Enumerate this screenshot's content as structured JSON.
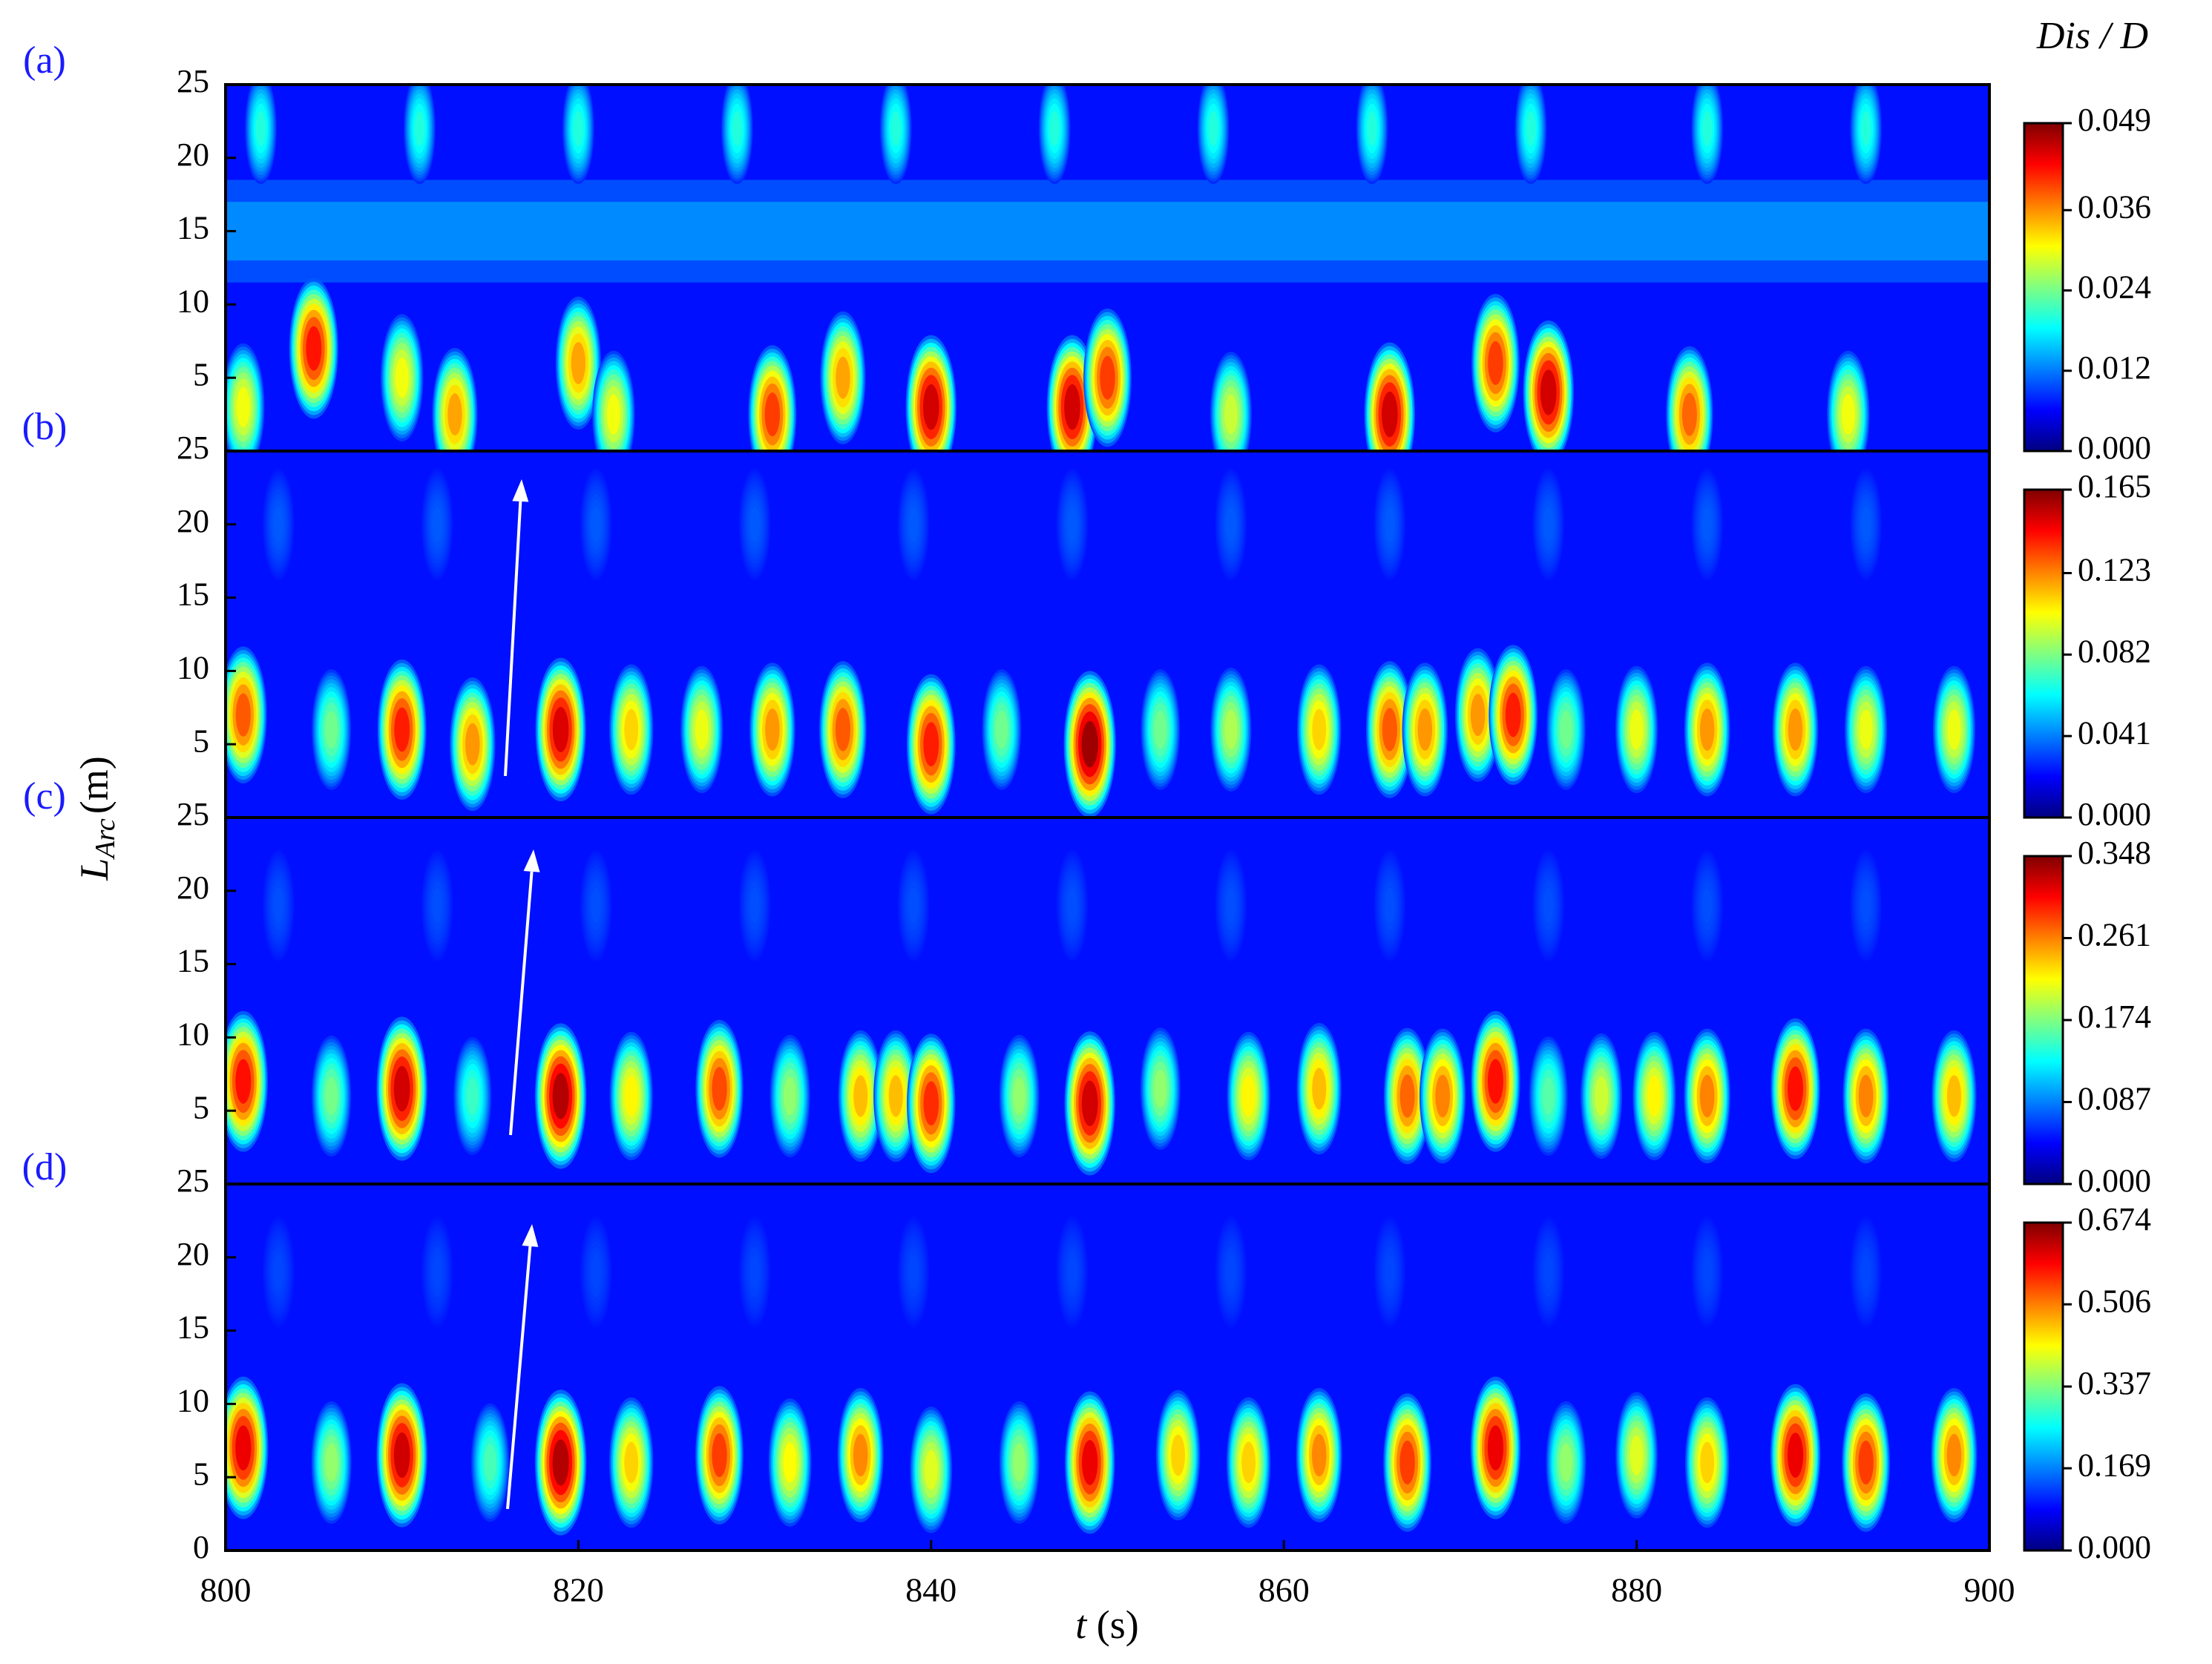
{
  "axes": {
    "xlabel": {
      "symbol": "t",
      "unit": "(s)"
    },
    "ylabel": {
      "symbol": "L",
      "subscript": "Arc",
      "unit": "(m)"
    },
    "colorbar_title": "Dis / D"
  },
  "chart_data": [
    {
      "type": "heatmap",
      "label": "(a)",
      "xlim": [
        800,
        900
      ],
      "ylim": [
        0,
        25
      ],
      "yticks": [
        5,
        10,
        15,
        20,
        25
      ],
      "colorbar": {
        "lim": [
          0,
          0.049
        ],
        "ticks": [
          {
            "value": 0,
            "label": "0.000"
          },
          0.012,
          0.024,
          0.036,
          0.049
        ]
      },
      "peaks": {
        "x": [
          801,
          805,
          810,
          813,
          820,
          822,
          831,
          835,
          840,
          848,
          850,
          857,
          866,
          872,
          875,
          883,
          892,
          802,
          811,
          820,
          829,
          838,
          847,
          856,
          865,
          874,
          884,
          893
        ],
        "y": [
          3,
          7,
          5,
          2.5,
          6,
          2.5,
          2.5,
          5,
          3,
          3,
          5,
          2.5,
          2.5,
          6,
          4,
          2.5,
          2.5,
          22,
          22,
          22,
          22,
          22,
          22,
          22,
          22,
          22,
          22,
          22
        ],
        "values": [
          0.03,
          0.042,
          0.03,
          0.035,
          0.035,
          0.03,
          0.04,
          0.035,
          0.045,
          0.045,
          0.04,
          0.028,
          0.045,
          0.04,
          0.045,
          0.038,
          0.03,
          0.02,
          0.02,
          0.02,
          0.02,
          0.02,
          0.02,
          0.02,
          0.02,
          0.02,
          0.02,
          0.02
        ]
      }
    },
    {
      "type": "heatmap",
      "label": "(b)",
      "xlim": [
        800,
        900
      ],
      "ylim": [
        0,
        25
      ],
      "yticks": [
        5,
        10,
        15,
        20,
        25
      ],
      "colorbar": {
        "lim": [
          0,
          0.165
        ],
        "ticks": [
          {
            "value": 0,
            "label": "0.000"
          },
          0.041,
          0.082,
          0.123,
          0.165
        ]
      },
      "peaks": {
        "x": [
          801,
          806,
          810,
          814,
          819,
          823,
          827,
          831,
          835,
          840,
          844,
          849,
          853,
          857,
          862,
          866,
          868,
          871,
          873,
          876,
          880,
          884,
          889,
          893,
          898,
          803,
          812,
          821,
          830,
          839,
          848,
          857,
          866,
          875,
          884,
          893
        ],
        "y": [
          7,
          6,
          6,
          5,
          6,
          6,
          6,
          6,
          6,
          5,
          6,
          5,
          6,
          6,
          6,
          6,
          6,
          7,
          7,
          6,
          6,
          6,
          6,
          6,
          6,
          20,
          20,
          20,
          20,
          20,
          20,
          20,
          20,
          20,
          20,
          20
        ],
        "values": [
          0.13,
          0.08,
          0.14,
          0.12,
          0.15,
          0.11,
          0.1,
          0.12,
          0.13,
          0.14,
          0.08,
          0.16,
          0.08,
          0.09,
          0.11,
          0.13,
          0.12,
          0.12,
          0.14,
          0.08,
          0.1,
          0.12,
          0.12,
          0.1,
          0.1,
          0.035,
          0.035,
          0.035,
          0.035,
          0.035,
          0.035,
          0.035,
          0.035,
          0.035,
          0.035,
          0.035
        ]
      }
    },
    {
      "type": "heatmap",
      "label": "(c)",
      "xlim": [
        800,
        900
      ],
      "ylim": [
        0,
        25
      ],
      "yticks": [
        5,
        10,
        15,
        20,
        25
      ],
      "colorbar": {
        "lim": [
          0,
          0.348
        ],
        "ticks": [
          {
            "value": 0,
            "label": "0.000"
          },
          0.087,
          0.174,
          0.261,
          0.348
        ]
      },
      "peaks": {
        "x": [
          801,
          806,
          810,
          814,
          819,
          823,
          828,
          832,
          836,
          838,
          840,
          845,
          849,
          853,
          858,
          862,
          867,
          869,
          872,
          875,
          878,
          881,
          884,
          889,
          893,
          898,
          803,
          812,
          821,
          830,
          839,
          848,
          857,
          866,
          875,
          884,
          893
        ],
        "y": [
          7,
          6,
          6.5,
          6,
          6,
          6,
          6.5,
          6,
          6,
          6,
          5.5,
          6,
          5.5,
          6.5,
          6,
          6.5,
          6,
          6,
          7,
          6,
          6,
          6,
          6,
          6.5,
          6,
          6,
          19,
          19,
          19,
          19,
          19,
          19,
          19,
          19,
          19,
          19,
          19
        ],
        "values": [
          0.3,
          0.17,
          0.32,
          0.15,
          0.33,
          0.22,
          0.28,
          0.18,
          0.24,
          0.24,
          0.29,
          0.18,
          0.32,
          0.18,
          0.22,
          0.24,
          0.27,
          0.26,
          0.3,
          0.16,
          0.2,
          0.22,
          0.26,
          0.3,
          0.26,
          0.24,
          0.07,
          0.07,
          0.07,
          0.07,
          0.07,
          0.07,
          0.07,
          0.07,
          0.07,
          0.07,
          0.07
        ]
      }
    },
    {
      "type": "heatmap",
      "label": "(d)",
      "xlim": [
        800,
        900
      ],
      "ylim": [
        0,
        25
      ],
      "xticks": [
        800,
        820,
        840,
        860,
        880,
        900
      ],
      "yticks": [
        0,
        5,
        10,
        15,
        20,
        25
      ],
      "colorbar": {
        "lim": [
          0,
          0.674
        ],
        "ticks": [
          {
            "value": 0,
            "label": "0.000"
          },
          0.169,
          0.337,
          0.506,
          0.674
        ]
      },
      "peaks": {
        "x": [
          801,
          806,
          810,
          815,
          819,
          823,
          828,
          832,
          836,
          840,
          845,
          849,
          854,
          858,
          862,
          867,
          872,
          876,
          880,
          884,
          889,
          893,
          898,
          803,
          812,
          821,
          830,
          839,
          848,
          857,
          866,
          875,
          884,
          893
        ],
        "y": [
          7,
          6,
          6.5,
          6,
          6,
          6,
          6.5,
          6,
          6.5,
          5.5,
          6,
          6,
          6.5,
          6,
          6.5,
          6,
          7,
          6,
          6.5,
          6,
          6.5,
          6,
          6.5,
          19,
          19,
          19,
          19,
          19,
          19,
          19,
          19,
          19,
          19,
          19
        ],
        "values": [
          0.6,
          0.35,
          0.62,
          0.3,
          0.64,
          0.45,
          0.55,
          0.42,
          0.5,
          0.4,
          0.35,
          0.6,
          0.45,
          0.45,
          0.5,
          0.55,
          0.6,
          0.35,
          0.4,
          0.45,
          0.6,
          0.55,
          0.5,
          0.13,
          0.13,
          0.13,
          0.13,
          0.13,
          0.13,
          0.13,
          0.13,
          0.13,
          0.13,
          0.13
        ]
      }
    }
  ]
}
